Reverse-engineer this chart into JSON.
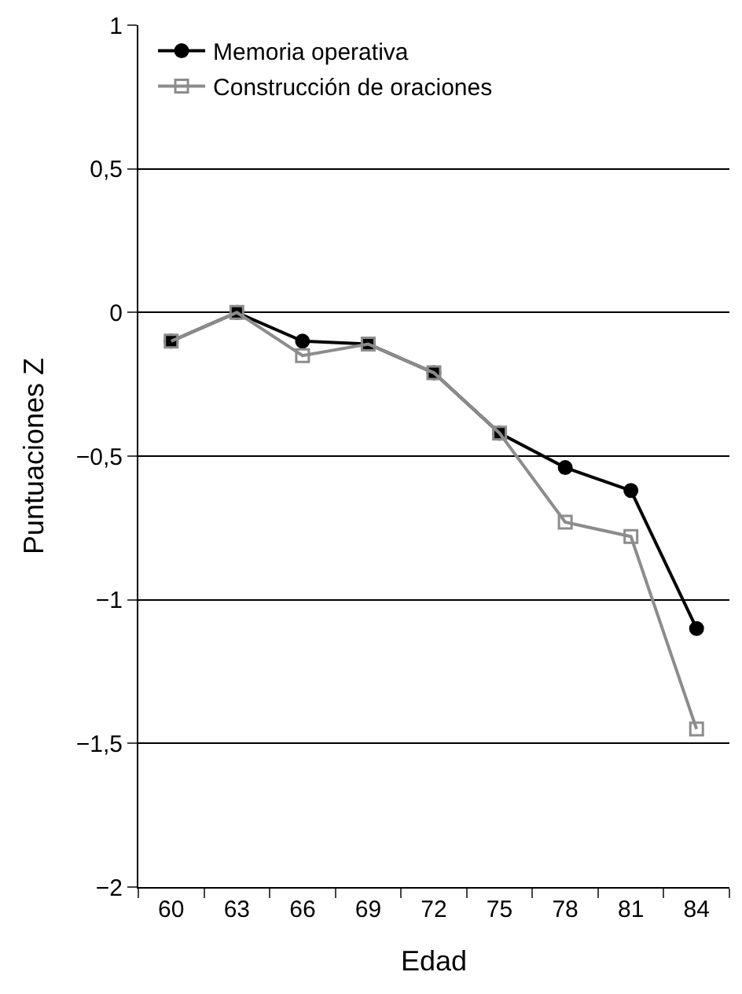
{
  "chart_data": {
    "type": "line",
    "xlabel": "Edad",
    "ylabel": "Puntuaciones Z",
    "categories": [
      "60",
      "63",
      "66",
      "69",
      "72",
      "75",
      "78",
      "81",
      "84"
    ],
    "series": [
      {
        "name": "Memoria operativa",
        "color": "#000000",
        "marker": "circle",
        "values": [
          -0.1,
          0,
          -0.1,
          -0.11,
          -0.21,
          -0.42,
          -0.54,
          -0.62,
          -1.1
        ]
      },
      {
        "name": "Construcción de oraciones",
        "color": "#8c8c8c",
        "marker": "square",
        "values": [
          -0.1,
          0,
          -0.15,
          -0.11,
          -0.21,
          -0.42,
          -0.73,
          -0.78,
          -1.45
        ]
      }
    ],
    "ylim": [
      -2,
      1
    ],
    "yticks": [
      {
        "value": -2,
        "label": "−2"
      },
      {
        "value": -1.5,
        "label": "−1,5"
      },
      {
        "value": -1,
        "label": "−1"
      },
      {
        "value": -0.5,
        "label": "−0,5"
      },
      0,
      {
        "value": 0.5,
        "label": "0,5"
      },
      1
    ],
    "grid": "y",
    "legend": "top left",
    "line_style": "solid"
  }
}
